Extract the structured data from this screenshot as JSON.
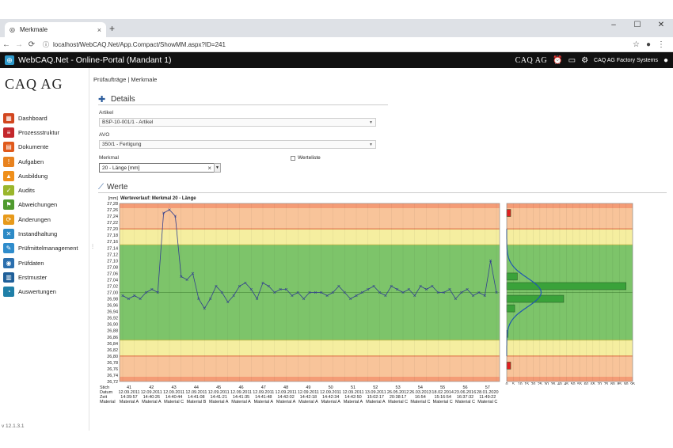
{
  "browser": {
    "tab_title": "Merkmale",
    "url": "localhost/WebCAQ.Net/App.Compact/ShowMM.aspx?ID=241",
    "new_tab": "+",
    "close_tab": "×",
    "minimize": "–",
    "maximize": "☐",
    "close_window": "✕"
  },
  "app": {
    "title": "WebCAQ.Net - Online-Portal (Mandant 1)",
    "header_logo": "CAQ AG",
    "company": "CAQ AG Factory Systems"
  },
  "sidebar": {
    "logo": "CAQ AG",
    "version": "v 12.1.3.1",
    "items": [
      {
        "label": "Dashboard",
        "color": "#d2461e",
        "glyph": "▦"
      },
      {
        "label": "Prozessstruktur",
        "color": "#c3272c",
        "glyph": "≡"
      },
      {
        "label": "Dokumente",
        "color": "#e05a1c",
        "glyph": "▤"
      },
      {
        "label": "Aufgaben",
        "color": "#e8821e",
        "glyph": "!"
      },
      {
        "label": "Ausbildung",
        "color": "#ef8f1a",
        "glyph": "▲"
      },
      {
        "label": "Audits",
        "color": "#9ab62c",
        "glyph": "✓"
      },
      {
        "label": "Abweichungen",
        "color": "#4f9a2e",
        "glyph": "⚑"
      },
      {
        "label": "Änderungen",
        "color": "#e79a1b",
        "glyph": "⟳"
      },
      {
        "label": "Instandhaltung",
        "color": "#2d8ac6",
        "glyph": "✕"
      },
      {
        "label": "Prüfmittelmanagement",
        "color": "#2f8ccc",
        "glyph": "✎"
      },
      {
        "label": "Prüfdaten",
        "color": "#2b6fae",
        "glyph": "◉"
      },
      {
        "label": "Erstmuster",
        "color": "#1f5f99",
        "glyph": "▥"
      },
      {
        "label": "Auswertungen",
        "color": "#1f7fa8",
        "glyph": "◔"
      }
    ]
  },
  "main": {
    "breadcrumb": "Prüfaufträge | Merkmale",
    "details_title": "Details",
    "artikel_label": "Artikel",
    "artikel_value": "BSP-10-001/1 - Artikel",
    "avo_label": "AVO",
    "avo_value": "350/1 - Fertigung",
    "merkmal_label": "Merkmal",
    "merkmal_value": "20 - Länge [mm]",
    "werteliste_label": "Werteliste",
    "werte_title": "Werte"
  },
  "chart_data": {
    "type": "line",
    "title": "Werteverlauf: Merkmal 20 - Länge",
    "ylabel": "[mm]",
    "ylim": [
      26.72,
      27.28
    ],
    "yticks": [
      "27,28",
      "27,26",
      "27,24",
      "27,22",
      "27,20",
      "27,18",
      "27,16",
      "27,14",
      "27,12",
      "27,10",
      "27,08",
      "27,06",
      "27,04",
      "27,02",
      "27,00",
      "26,98",
      "26,96",
      "26,94",
      "26,92",
      "26,90",
      "26,88",
      "26,86",
      "26,84",
      "26,82",
      "26,80",
      "26,78",
      "26,76",
      "26,74",
      "26,72"
    ],
    "limits": {
      "upper_tolerance": 27.2,
      "lower_tolerance": 26.8,
      "upper_warning": 27.15,
      "lower_warning": 26.85,
      "mean": 27.0
    },
    "zone_colors": {
      "green": "#7dc46a",
      "yellow": "#f5eea0",
      "red_edge": "#f07b5a",
      "orange": "#f8c49a"
    },
    "series": [
      {
        "name": "",
        "color": "#33408f",
        "values": [
          26.99,
          26.98,
          26.99,
          26.98,
          27.0,
          27.01,
          27.0,
          27.25,
          27.26,
          27.24,
          27.05,
          27.04,
          27.06,
          26.98,
          26.95,
          26.98,
          27.02,
          27.0,
          26.97,
          26.99,
          27.02,
          27.03,
          27.01,
          26.98,
          27.03,
          27.02,
          27.0,
          27.01,
          27.01,
          26.99,
          27.0,
          26.98,
          27.0,
          27.0,
          27.0,
          26.99,
          27.0,
          27.02,
          27.0,
          26.98,
          26.99,
          27.0,
          27.01,
          27.02,
          27.0,
          26.99,
          27.02,
          27.01,
          27.0,
          27.01,
          26.99,
          27.02,
          27.01,
          27.02,
          27.0,
          27.0,
          27.01,
          26.98,
          27.0,
          27.01,
          26.99,
          27.0,
          26.99,
          27.1,
          27.0
        ]
      }
    ],
    "table_header": [
      "Stich",
      "Datum",
      "Zeit",
      "Material"
    ],
    "table": [
      {
        "stich": "41",
        "datum": "12.09.2011",
        "zeit": "14:39:57",
        "material": "Material A"
      },
      {
        "stich": "42",
        "datum": "12.09.2011",
        "zeit": "14:40:26",
        "material": "Material A"
      },
      {
        "stich": "43",
        "datum": "12.09.2011",
        "zeit": "14:40:44",
        "material": "Material C"
      },
      {
        "stich": "44",
        "datum": "12.09.2011",
        "zeit": "14:41:08",
        "material": "Material B"
      },
      {
        "stich": "45",
        "datum": "12.09.2011",
        "zeit": "14:41:21",
        "material": "Material A"
      },
      {
        "stich": "46",
        "datum": "12.09.2011",
        "zeit": "14:41:35",
        "material": "Material A"
      },
      {
        "stich": "47",
        "datum": "12.09.2011",
        "zeit": "14:41:48",
        "material": "Material A"
      },
      {
        "stich": "48",
        "datum": "12.09.2011",
        "zeit": "14:42:02",
        "material": "Material A"
      },
      {
        "stich": "49",
        "datum": "12.09.2011",
        "zeit": "14:42:18",
        "material": "Material A"
      },
      {
        "stich": "50",
        "datum": "12.09.2011",
        "zeit": "14:42:34",
        "material": "Material A"
      },
      {
        "stich": "51",
        "datum": "12.09.2011",
        "zeit": "14:42:50",
        "material": "Material A"
      },
      {
        "stich": "52",
        "datum": "13.09.2011",
        "zeit": "15:02:17",
        "material": "Material A"
      },
      {
        "stich": "53",
        "datum": "26.05.2012",
        "zeit": "20:38:17",
        "material": "Material C"
      },
      {
        "stich": "54",
        "datum": "26.03.2013",
        "zeit": "16:54",
        "material": "Material C"
      },
      {
        "stich": "55",
        "datum": "18.02.2014",
        "zeit": "15:16:54",
        "material": "Material C"
      },
      {
        "stich": "56",
        "datum": "23.06.2016",
        "zeit": "16:37:32",
        "material": "Material C"
      },
      {
        "stich": "57",
        "datum": "28.01.2020",
        "zeit": "11:49:22",
        "material": "Material C"
      }
    ],
    "histogram": {
      "x_ticks": [
        "0",
        "5",
        "10",
        "15",
        "20",
        "25",
        "30",
        "35",
        "40",
        "45",
        "50",
        "55",
        "60",
        "65",
        "70",
        "75",
        "80",
        "85",
        "90",
        "95"
      ],
      "xlim": [
        0,
        95
      ],
      "bins": [
        {
          "center": 27.25,
          "count": 3,
          "color": "#e02020"
        },
        {
          "center": 27.05,
          "count": 8,
          "color": "#3aa23a"
        },
        {
          "center": 27.02,
          "count": 90,
          "color": "#3aa23a"
        },
        {
          "center": 26.98,
          "count": 43,
          "color": "#3aa23a"
        },
        {
          "center": 26.95,
          "count": 6,
          "color": "#3aa23a"
        },
        {
          "center": 26.87,
          "count": 1,
          "color": "#3aa23a"
        },
        {
          "center": 26.77,
          "count": 3,
          "color": "#e02020"
        }
      ],
      "curve_color": "#1f57b0"
    }
  }
}
